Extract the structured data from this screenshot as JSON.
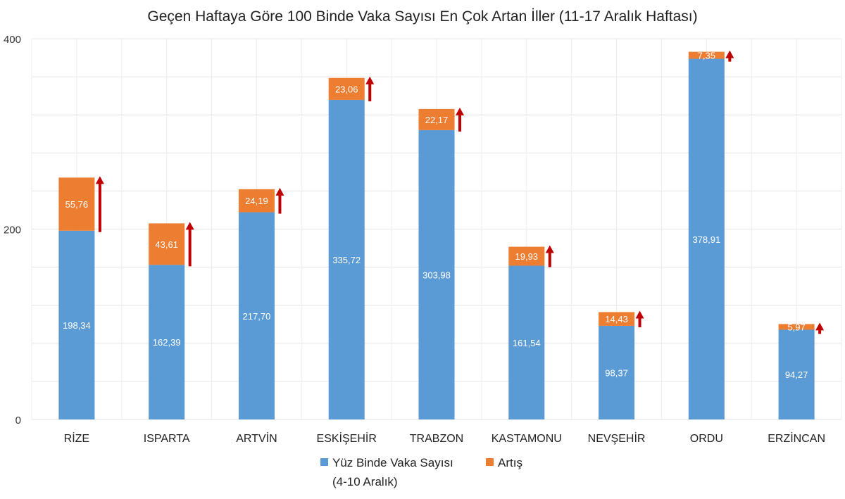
{
  "chart_data": {
    "type": "bar",
    "stacked": true,
    "title": "Geçen Haftaya Göre 100 Binde Vaka Sayısı En Çok Artan İller (11-17 Aralık Haftası)",
    "xlabel": "",
    "ylabel": "",
    "ylim": [
      0,
      400
    ],
    "yticks": [
      0,
      200,
      400
    ],
    "grid": true,
    "legend_position": "bottom",
    "categories": [
      "RİZE",
      "ISPARTA",
      "ARTVİN",
      "ESKİŞEHİR",
      "TRABZON",
      "KASTAMONU",
      "NEVŞEHİR",
      "ORDU",
      "ERZİNCAN"
    ],
    "series": [
      {
        "name": "Yüz Binde Vaka Sayısı (4-10 Aralık)",
        "legend_lines": [
          "Yüz Binde Vaka Sayısı",
          "(4-10 Aralık)"
        ],
        "color": "#5b9bd5",
        "values": [
          198.34,
          162.39,
          217.7,
          335.72,
          303.98,
          161.54,
          98.37,
          378.91,
          94.27
        ],
        "labels": [
          "198,34",
          "162,39",
          "217,70",
          "335,72",
          "303,98",
          "161,54",
          "98,37",
          "378,91",
          "94,27"
        ]
      },
      {
        "name": "Artış",
        "color": "#ed7d31",
        "values": [
          55.76,
          43.61,
          24.19,
          23.06,
          22.17,
          19.93,
          14.43,
          7.35,
          5.97
        ],
        "labels": [
          "55,76",
          "43,61",
          "24,19",
          "23,06",
          "22,17",
          "19,93",
          "14,43",
          "7,35",
          "5,97"
        ]
      }
    ],
    "annotations": {
      "arrow_icon": "up-arrow-icon",
      "arrow_color": "#c00000"
    }
  }
}
